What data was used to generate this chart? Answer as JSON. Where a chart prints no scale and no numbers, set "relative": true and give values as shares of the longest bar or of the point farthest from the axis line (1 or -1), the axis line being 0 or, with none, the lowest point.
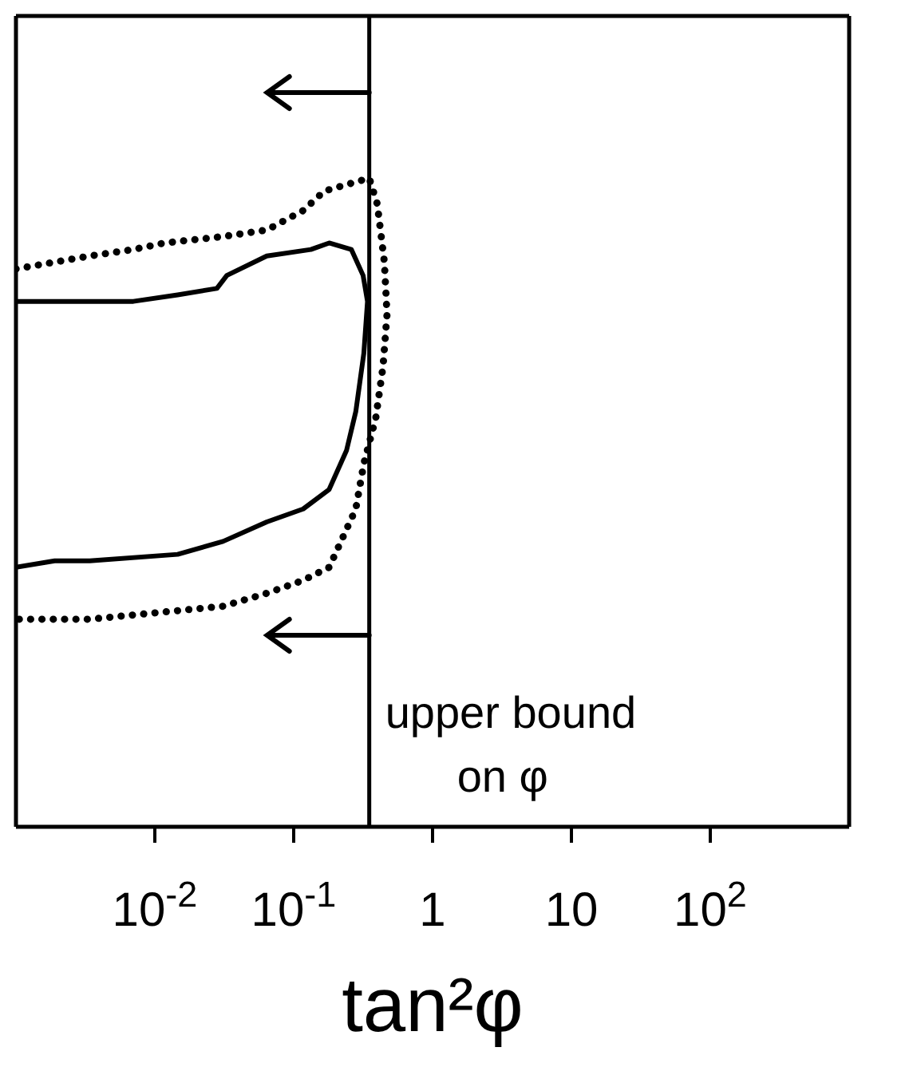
{
  "chart_data": {
    "type": "line",
    "relative": true,
    "xlabel": "tan²φ",
    "log": "x",
    "xlim": [
      0.001,
      1000
    ],
    "xticks": [
      {
        "value": 0.01,
        "label": "10$^{-2}$"
      },
      {
        "value": 0.1,
        "label": "10$^{-1}$"
      },
      1,
      10,
      {
        "value": 100,
        "label": "10$^{2}$"
      }
    ],
    "series": [
      {
        "color": "#000000",
        "line_style": "solid",
        "x": [
          0.001,
          0.0023,
          0.007,
          0.0146,
          0.028,
          0.033,
          0.064,
          0.133,
          0.18,
          0.26,
          0.316,
          0.34,
          0.32,
          0.28,
          0.24,
          0.18,
          0.117,
          0.064,
          0.031,
          0.0146,
          0.0034,
          0.0019,
          0.001
        ],
        "values": [
          0.81,
          0.81,
          0.81,
          0.82,
          0.83,
          0.85,
          0.88,
          0.89,
          0.9,
          0.89,
          0.85,
          0.81,
          0.73,
          0.64,
          0.58,
          0.52,
          0.49,
          0.47,
          0.44,
          0.42,
          0.41,
          0.41,
          0.4
        ]
      },
      {
        "color": "#000000",
        "line_style": "dotted",
        "x": [
          0.001,
          0.0034,
          0.007,
          0.0117,
          0.031,
          0.064,
          0.117,
          0.166,
          0.24,
          0.35,
          0.4,
          0.45,
          0.47,
          0.44,
          0.39,
          0.32,
          0.28,
          0.18,
          0.117,
          0.064,
          0.031,
          0.0102,
          0.0034,
          0.001
        ],
        "values": [
          0.86,
          0.88,
          0.89,
          0.9,
          0.91,
          0.92,
          0.95,
          0.98,
          0.99,
          1.0,
          0.96,
          0.87,
          0.79,
          0.71,
          0.63,
          0.56,
          0.49,
          0.4,
          0.38,
          0.36,
          0.34,
          0.33,
          0.32,
          0.32
        ]
      }
    ],
    "ref_lines": [
      {
        "axis": "x",
        "value": 0.35,
        "label": "upper bound on φ",
        "color": "#000000"
      }
    ]
  }
}
